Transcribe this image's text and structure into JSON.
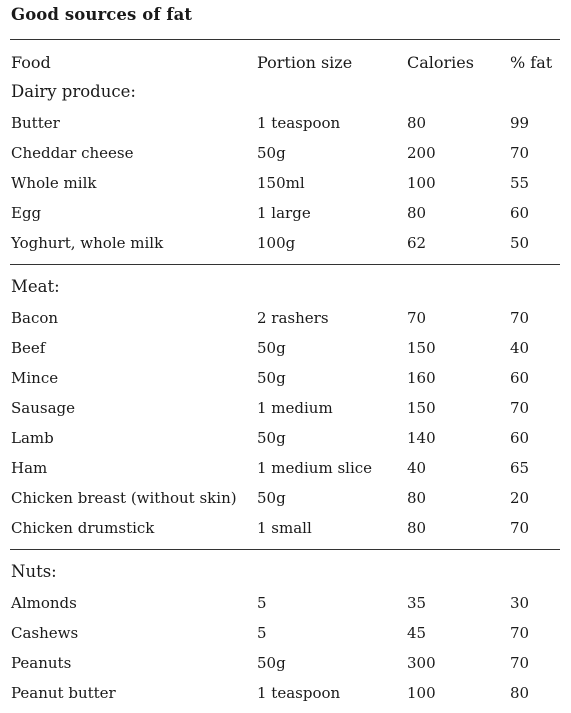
{
  "title": "Good sources of fat",
  "columns": {
    "food": "Food",
    "portion": "Portion size",
    "calories": "Calories",
    "fat": "% fat"
  },
  "sections": [
    {
      "label": "Dairy produce:",
      "rows": [
        {
          "food": "Butter",
          "portion": "1 teaspoon",
          "calories": "80",
          "fat": "99"
        },
        {
          "food": "Cheddar cheese",
          "portion": "50g",
          "calories": "200",
          "fat": "70"
        },
        {
          "food": "Whole milk",
          "portion": "150ml",
          "calories": "100",
          "fat": "55"
        },
        {
          "food": "Egg",
          "portion": "1 large",
          "calories": "80",
          "fat": "60"
        },
        {
          "food": "Yoghurt, whole milk",
          "portion": "100g",
          "calories": "62",
          "fat": "50"
        }
      ]
    },
    {
      "label": "Meat:",
      "rows": [
        {
          "food": "Bacon",
          "portion": "2 rashers",
          "calories": "70",
          "fat": "70"
        },
        {
          "food": "Beef",
          "portion": "50g",
          "calories": "150",
          "fat": "40"
        },
        {
          "food": "Mince",
          "portion": "50g",
          "calories": "160",
          "fat": "60"
        },
        {
          "food": "Sausage",
          "portion": "1 medium",
          "calories": "150",
          "fat": "70"
        },
        {
          "food": "Lamb",
          "portion": "50g",
          "calories": "140",
          "fat": "60"
        },
        {
          "food": "Ham",
          "portion": "1 medium slice",
          "calories": "40",
          "fat": "65"
        },
        {
          "food": "Chicken breast (without skin)",
          "portion": "50g",
          "calories": "80",
          "fat": "20"
        },
        {
          "food": "Chicken drumstick",
          "portion": "1 small",
          "calories": "80",
          "fat": "70"
        }
      ]
    },
    {
      "label": "Nuts:",
      "rows": [
        {
          "food": "Almonds",
          "portion": "5",
          "calories": "35",
          "fat": "30"
        },
        {
          "food": "Cashews",
          "portion": "5",
          "calories": "45",
          "fat": "70"
        },
        {
          "food": "Peanuts",
          "portion": "50g",
          "calories": "300",
          "fat": "70"
        },
        {
          "food": "Peanut butter",
          "portion": "1 teaspoon",
          "calories": "100",
          "fat": "80"
        }
      ]
    }
  ]
}
